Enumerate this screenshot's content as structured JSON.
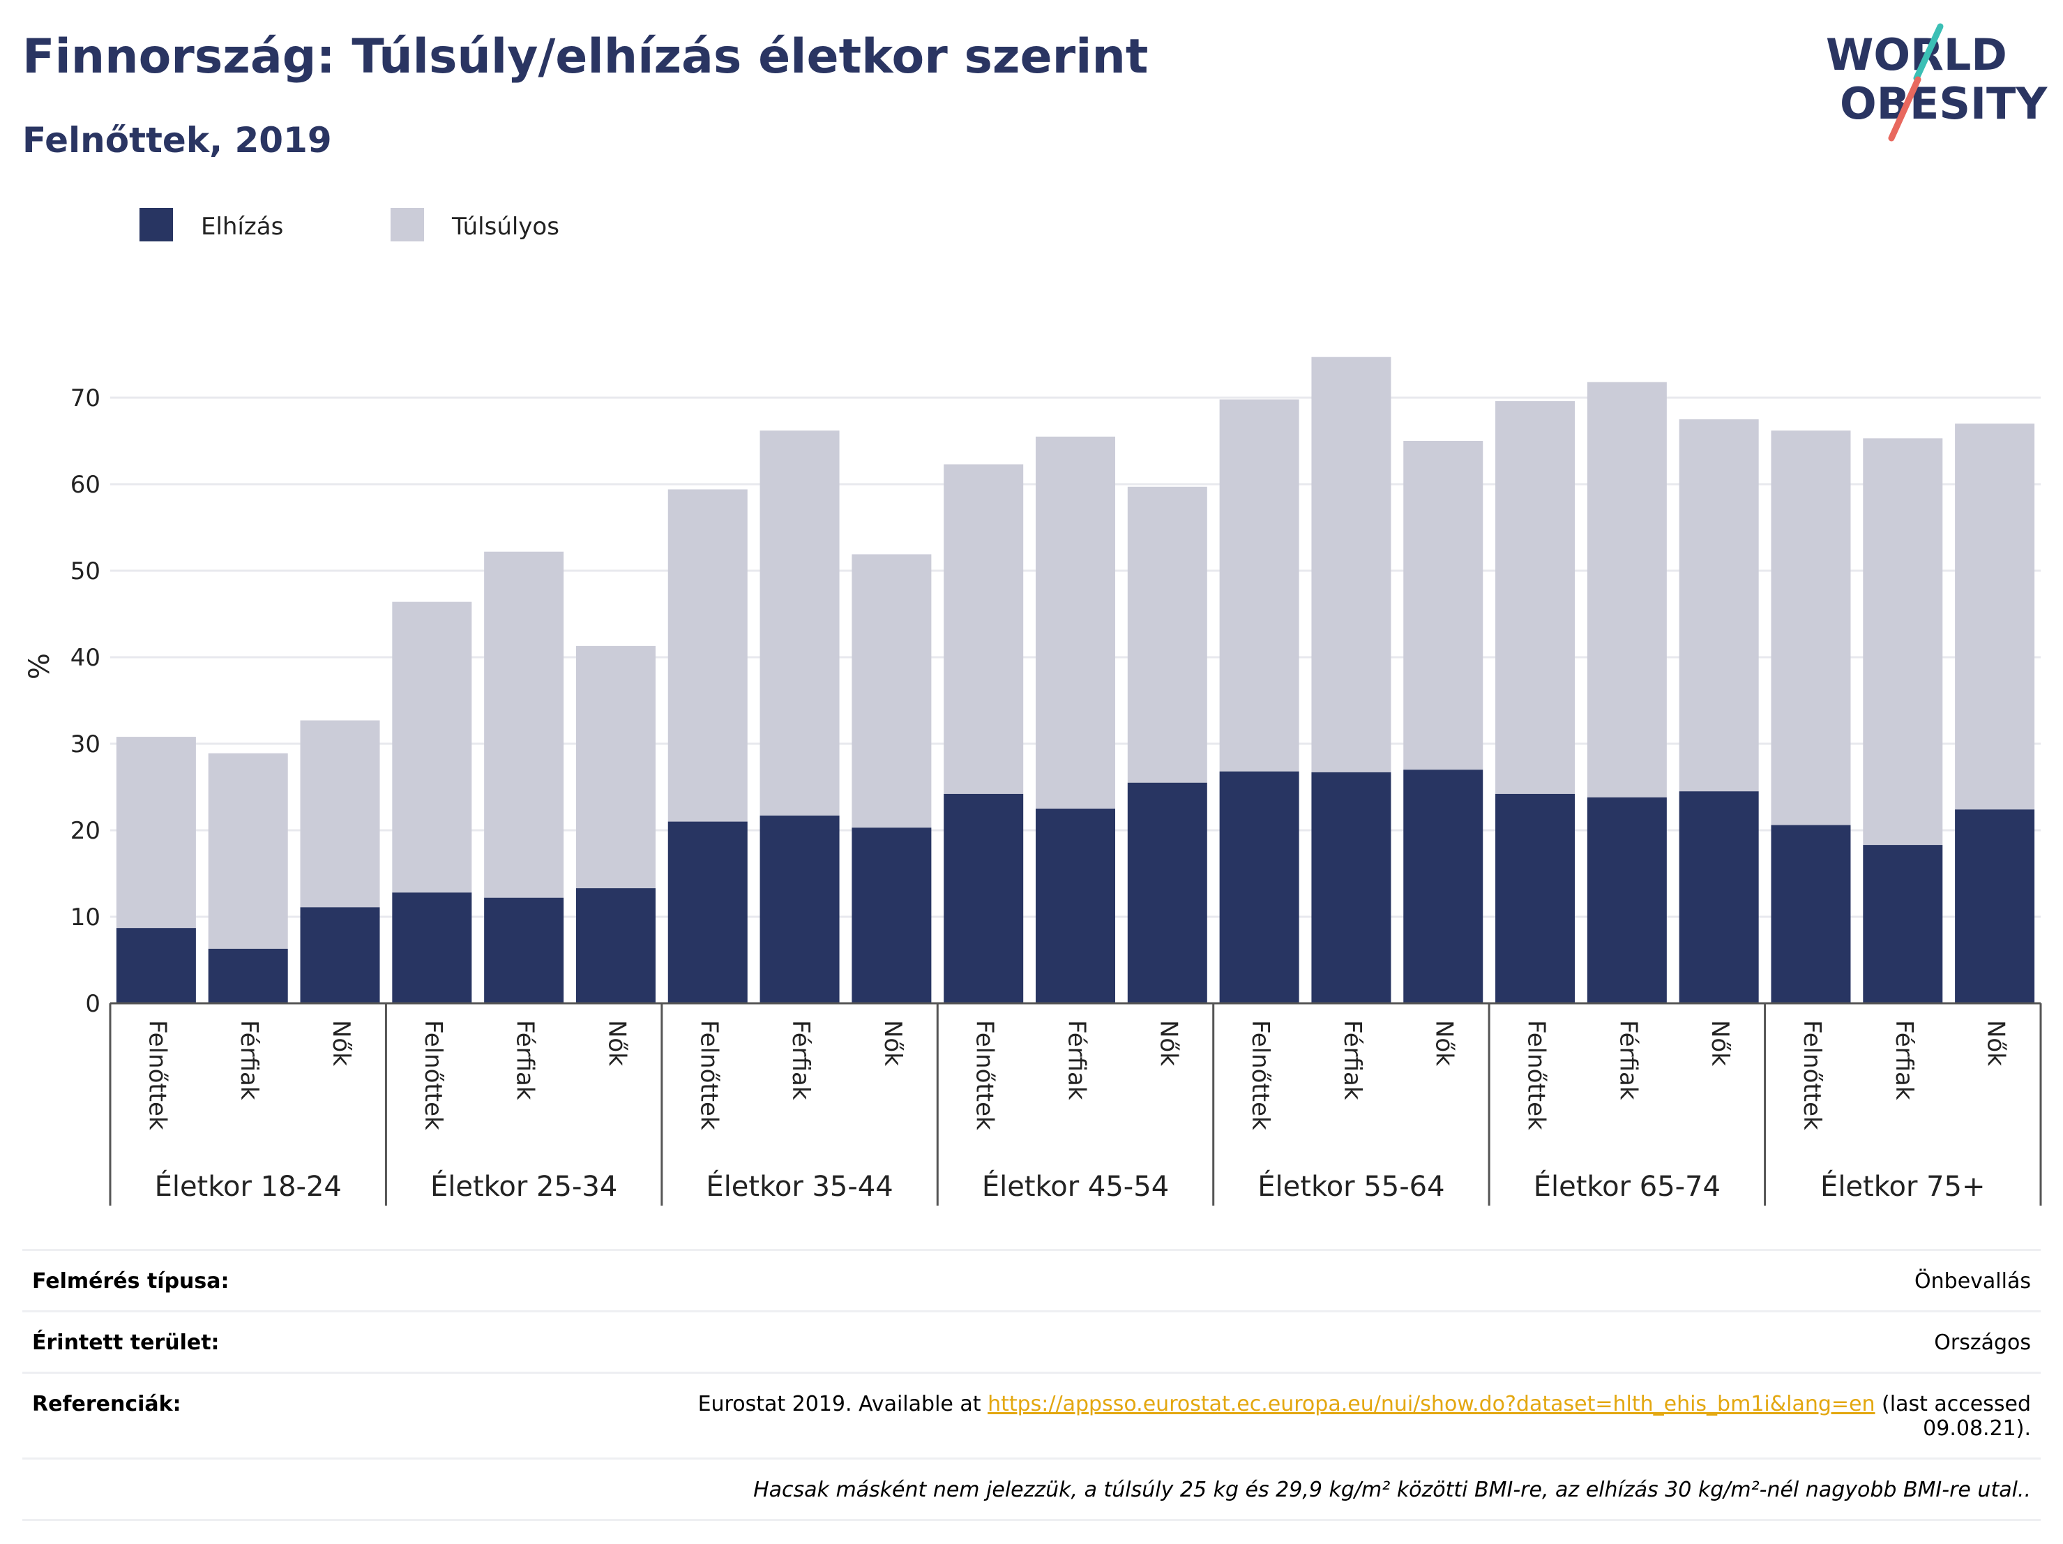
{
  "header": {
    "title": "Finnország: Túlsúly/elhízás életkor szerint",
    "subtitle": "Felnőttek, 2019"
  },
  "logo": {
    "line1": "WORLD",
    "line2": "OBESITY",
    "accent_teal": "#3bbfb5",
    "accent_red": "#e8685e"
  },
  "colors": {
    "obesity": "#283562",
    "overweight": "#cbccd8",
    "grid": "#e8e9ee",
    "axis": "#555555",
    "text": "#2a3562"
  },
  "chart_data": {
    "type": "bar",
    "stacked": true,
    "ylabel": "%",
    "ylim": [
      0,
      75
    ],
    "yticks": [
      0,
      10,
      20,
      30,
      40,
      50,
      60,
      70
    ],
    "legend_position": "top-left",
    "groups": [
      "Életkor 18-24",
      "Életkor 25-34",
      "Életkor 35-44",
      "Életkor 45-54",
      "Életkor 55-64",
      "Életkor 65-74",
      "Életkor 75+"
    ],
    "subcategories": [
      "Felnőttek",
      "Férfiak",
      "Nők"
    ],
    "series": [
      {
        "name": "Elhízás",
        "color": "#283562",
        "values": [
          [
            8.7,
            6.3,
            11.1
          ],
          [
            12.8,
            12.2,
            13.3
          ],
          [
            21.0,
            21.7,
            20.3
          ],
          [
            24.2,
            22.5,
            25.5
          ],
          [
            26.8,
            26.7,
            27.0
          ],
          [
            24.2,
            23.8,
            24.5
          ],
          [
            20.6,
            18.3,
            22.4
          ]
        ]
      },
      {
        "name": "Túlsúlyos",
        "color": "#cbccd8",
        "values": [
          [
            22.1,
            22.6,
            21.6
          ],
          [
            33.6,
            40.0,
            28.0
          ],
          [
            38.4,
            44.5,
            31.6
          ],
          [
            38.1,
            43.0,
            34.2
          ],
          [
            43.0,
            48.0,
            38.0
          ],
          [
            45.4,
            48.0,
            43.0
          ],
          [
            45.6,
            47.0,
            44.6
          ]
        ]
      }
    ]
  },
  "info": {
    "survey_type_label": "Felmérés típusa:",
    "survey_type_value": "Önbevallás",
    "area_label": "Érintett terület:",
    "area_value": "Országos",
    "references_label": "Referenciák:",
    "references_prefix": "Eurostat 2019. Available at ",
    "references_link": "https://appsso.eurostat.ec.europa.eu/nui/show.do?dataset=hlth_ehis_bm1i&lang=en",
    "references_suffix": " (last accessed",
    "references_date": "09.08.21).",
    "note": "Hacsak másként nem jelezzük, a túlsúly 25 kg és 29,9 kg/m² közötti BMI-re, az elhízás 30 kg/m²-nél nagyobb BMI-re utal.."
  }
}
